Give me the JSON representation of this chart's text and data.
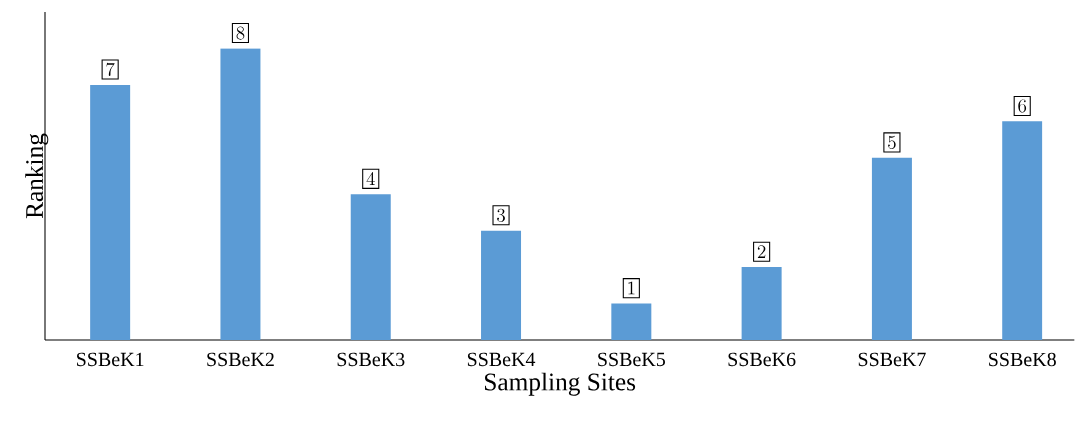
{
  "chart_data": {
    "type": "bar",
    "xlabel": "Sampling Sites",
    "ylabel": "Ranking",
    "categories": [
      "SSBeK1",
      "SSBeK2",
      "SSBeK3",
      "SSBeK4",
      "SSBeK5",
      "SSBeK6",
      "SSBeK7",
      "SSBeK8"
    ],
    "values": [
      7,
      8,
      4,
      3,
      1,
      2,
      5,
      6
    ],
    "color": "#5b9bd5",
    "ylim": [
      0,
      9
    ],
    "tick_labels": "x",
    "data_labels": true
  }
}
